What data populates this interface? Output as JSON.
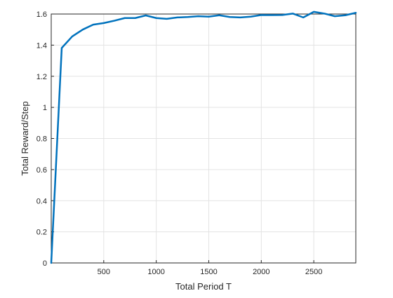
{
  "chart_data": {
    "type": "line",
    "title": "",
    "xlabel": "Total Period T",
    "ylabel": "Total Reward/Step",
    "xlim": [
      0,
      2900
    ],
    "ylim": [
      0,
      1.6
    ],
    "grid": true,
    "xticks": [
      500,
      1000,
      1500,
      2000,
      2500
    ],
    "xtick_labels": [
      "500",
      "1000",
      "1500",
      "2000",
      "2500"
    ],
    "yticks": [
      0,
      0.2,
      0.4,
      0.6,
      0.8,
      1,
      1.2,
      1.4,
      1.6
    ],
    "ytick_labels": [
      "0",
      "0.2",
      "0.4",
      "0.6",
      "0.8",
      "1",
      "1.2",
      "1.4",
      "1.6"
    ],
    "series": [
      {
        "color": "#0072BD",
        "x": [
          0,
          100,
          200,
          300,
          400,
          500,
          600,
          700,
          800,
          900,
          1000,
          1100,
          1200,
          1300,
          1400,
          1500,
          1600,
          1700,
          1800,
          1900,
          2000,
          2100,
          2200,
          2300,
          2400,
          2500,
          2600,
          2700,
          2800,
          2900
        ],
        "y": [
          0,
          1.382,
          1.456,
          1.5,
          1.532,
          1.542,
          1.557,
          1.574,
          1.574,
          1.591,
          1.574,
          1.569,
          1.578,
          1.581,
          1.586,
          1.583,
          1.592,
          1.581,
          1.578,
          1.583,
          1.594,
          1.593,
          1.594,
          1.603,
          1.578,
          1.614,
          1.603,
          1.586,
          1.592,
          1.608
        ]
      }
    ]
  }
}
